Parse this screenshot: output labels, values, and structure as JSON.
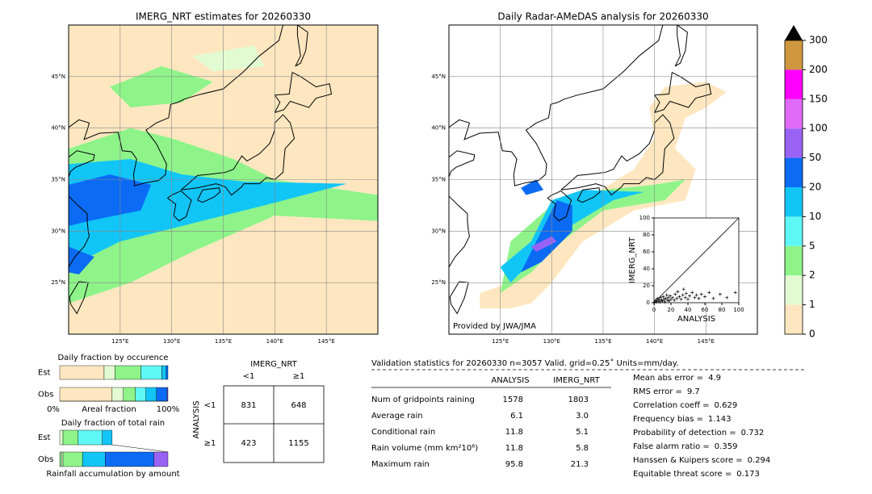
{
  "maps": [
    {
      "title": "IMERG_NRT estimates for 20260330",
      "lonlim": [
        120,
        150
      ],
      "latlim": [
        20,
        50
      ],
      "xticks": [
        {
          "value": 125,
          "label": "125°E"
        },
        {
          "value": 130,
          "label": "130°E"
        },
        {
          "value": 135,
          "label": "135°E"
        },
        {
          "value": 140,
          "label": "140°E"
        },
        {
          "value": 145,
          "label": "145°E"
        }
      ],
      "yticks": [
        {
          "value": 45,
          "label": "45°N"
        },
        {
          "value": 40,
          "label": "40°N"
        },
        {
          "value": 35,
          "label": "35°N"
        },
        {
          "value": 30,
          "label": "30°N"
        },
        {
          "value": 25,
          "label": "25°N"
        }
      ]
    },
    {
      "title": "Daily Radar-AMeDAS analysis for 20260330",
      "lonlim": [
        120,
        150
      ],
      "latlim": [
        20,
        50
      ],
      "xticks": [
        {
          "value": 125,
          "label": "125°E"
        },
        {
          "value": 130,
          "label": "130°E"
        },
        {
          "value": 135,
          "label": "135°E"
        },
        {
          "value": 140,
          "label": "140°E"
        },
        {
          "value": 145,
          "label": "145°E"
        }
      ],
      "yticks": [
        {
          "value": 45,
          "label": "45°N"
        },
        {
          "value": 40,
          "label": "40°N"
        },
        {
          "value": 35,
          "label": "35°N"
        },
        {
          "value": 30,
          "label": "30°N"
        },
        {
          "value": 25,
          "label": "25°N"
        }
      ],
      "credit": "Provided by JWA/JMA"
    }
  ],
  "colorbar": {
    "ticks": [
      0,
      1,
      2,
      5,
      10,
      20,
      50,
      100,
      150,
      200,
      300
    ],
    "colors": [
      "#fee7c0",
      "#e3fbd2",
      "#8ef48a",
      "#5ff7f5",
      "#12c5f7",
      "#0b6bf4",
      "#9a62f4",
      "#de6af7",
      "#ff00ff",
      "#cf983e"
    ]
  },
  "scatter": {
    "xlabel": "ANALYSIS",
    "ylabel": "IMERG_NRT",
    "xlim": [
      0,
      100
    ],
    "ylim": [
      0,
      100
    ],
    "xticks": [
      0,
      20,
      40,
      60,
      80,
      100
    ],
    "yticks": [
      0,
      20,
      40,
      60,
      80,
      100
    ],
    "x": [
      1,
      2,
      3,
      4,
      5,
      6,
      7,
      8,
      9,
      10,
      11,
      12,
      13,
      14,
      15,
      16,
      17,
      18,
      19,
      20,
      22,
      24,
      25,
      27,
      28,
      30,
      32,
      34,
      35,
      37,
      38,
      40,
      42,
      45,
      48,
      50,
      53,
      56,
      60,
      65,
      70,
      78,
      86,
      96
    ],
    "y": [
      1,
      3,
      1,
      5,
      2,
      4,
      1,
      6,
      3,
      2,
      7,
      4,
      1,
      5,
      9,
      3,
      6,
      2,
      8,
      4,
      6,
      3,
      10,
      5,
      13,
      7,
      4,
      9,
      16,
      6,
      11,
      4,
      8,
      12,
      6,
      9,
      5,
      10,
      7,
      12,
      5,
      10,
      6,
      12
    ]
  },
  "occurrence": {
    "title": "Daily fraction by occurence",
    "xlabel": "Areal fraction",
    "left_label": "0%",
    "right_label": "100%",
    "rows": [
      {
        "name": "Est",
        "values": [
          41,
          10,
          24,
          19.4,
          4,
          1.6
        ],
        "colors": [
          "#fee7c0",
          "#e3fbd2",
          "#8ef48a",
          "#5ff7f5",
          "#12c5f7",
          "#0b6bf4"
        ]
      },
      {
        "name": "Obs",
        "values": [
          48.4,
          10.4,
          11.2,
          9.7,
          9.7,
          9.9,
          0.7
        ],
        "colors": [
          "#fee7c0",
          "#e3fbd2",
          "#8ef48a",
          "#5ff7f5",
          "#12c5f7",
          "#0b6bf4",
          "#9a62f4"
        ]
      }
    ]
  },
  "total_rain": {
    "title": "Daily fraction of total rain",
    "xlabel": "Rainfall accumulation by amount",
    "rows": [
      {
        "name": "Est",
        "values": [
          3,
          14,
          22.4,
          9
        ],
        "colors": [
          "#e3fbd2",
          "#8ef48a",
          "#5ff7f5",
          "#12c5f7"
        ]
      },
      {
        "name": "Obs",
        "values": [
          1.5,
          1.5,
          18,
          21,
          45,
          13
        ],
        "colors": [
          "#8ef48a",
          "#e3fbd2",
          "#8ef48a",
          "#12c5f7",
          "#0b6bf4",
          "#9a62f4"
        ]
      }
    ]
  },
  "contingency": {
    "title": "IMERG_NRT",
    "columns": [
      "<1",
      "≥1"
    ],
    "row_title": "ANALYSIS",
    "rows": [
      "<1",
      "≥1"
    ],
    "cells": [
      [
        831,
        648
      ],
      [
        423,
        1155
      ]
    ]
  },
  "stats": {
    "header": "Validation statistics for 20260330  n=3057 Valid. grid=0.25˚ Units=mm/day.",
    "columns": [
      "ANALYSIS",
      "IMERG_NRT"
    ],
    "rows": [
      {
        "label": "Num of gridpoints raining",
        "values": [
          "1578",
          "1803"
        ]
      },
      {
        "label": "Average rain",
        "values": [
          "6.1",
          "3.0"
        ]
      },
      {
        "label": "Conditional rain",
        "values": [
          "11.8",
          "5.1"
        ]
      },
      {
        "label": "Rain volume (mm km²10⁶)",
        "values": [
          "11.8",
          "5.8"
        ]
      },
      {
        "label": "Maximum rain",
        "values": [
          "95.8",
          "21.3"
        ]
      }
    ],
    "scores": [
      {
        "label": "Mean abs error =",
        "value": "4.9"
      },
      {
        "label": "RMS error =",
        "value": "9.7"
      },
      {
        "label": "Correlation coeff =",
        "value": "0.629"
      },
      {
        "label": "Frequency bias =",
        "value": "1.143"
      },
      {
        "label": "Probability of detection =",
        "value": "0.732"
      },
      {
        "label": "False alarm ratio =",
        "value": "0.359"
      },
      {
        "label": "Hanssen & Kuipers score =",
        "value": "0.294"
      },
      {
        "label": "Equitable threat score =",
        "value": "0.173"
      }
    ]
  }
}
